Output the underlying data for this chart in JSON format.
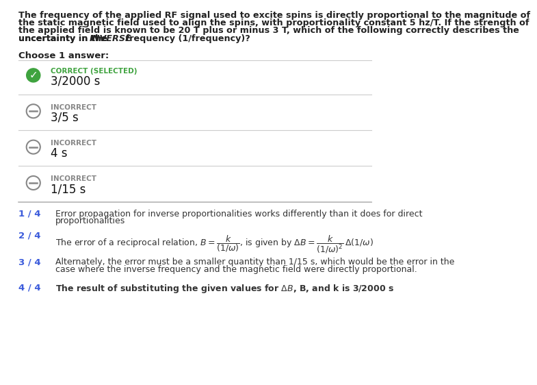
{
  "bg_color": "#ffffff",
  "question_lines": [
    "The frequency of the applied RF signal used to excite spins is directly proportional to the magnitude of",
    "the static magnetic field used to align the spins, with proportionality constant 5 hz/T. If the strength of",
    "the applied field is known to be 20 T plus or minus 3 T, which of the following correctly describes the",
    "uncertainty in the "
  ],
  "inverse_word": "INVERSE",
  "question_end": " frequency (1/frequency)?",
  "choose_text": "Choose 1 answer:",
  "answers": [
    {
      "status": "CORRECT (SELECTED)",
      "label": "3/2000 s",
      "correct": true
    },
    {
      "status": "INCORRECT",
      "label": "3/5 s",
      "correct": false
    },
    {
      "status": "INCORRECT",
      "label": "4 s",
      "correct": false
    },
    {
      "status": "INCORRECT",
      "label": "1/15 s",
      "correct": false
    }
  ],
  "hint1_num": "1 / 4",
  "hint1_line1": "Error propagation for inverse proportionalities works differently than it does for direct",
  "hint1_line2": "proportionalities",
  "hint2_num": "2 / 4",
  "hint2_prefix": "The error of a reciprocal relation, ",
  "hint3_num": "3 / 4",
  "hint3_line1": "Alternately, the error must be a smaller quantity than 1/15 s, which would be the error in the",
  "hint3_line2": "case where the inverse frequency and the magnetic field were directly proportional.",
  "hint4_num": "4 / 4",
  "hint4_text": "The result of substituting the given values for ΔB, B, and k is 3/2000 s",
  "green_color": "#3fa33f",
  "blue_color": "#3b5bdb",
  "gray_color": "#888888",
  "line_color": "#cccccc",
  "text_color": "#222222",
  "hint_text_color": "#333333"
}
